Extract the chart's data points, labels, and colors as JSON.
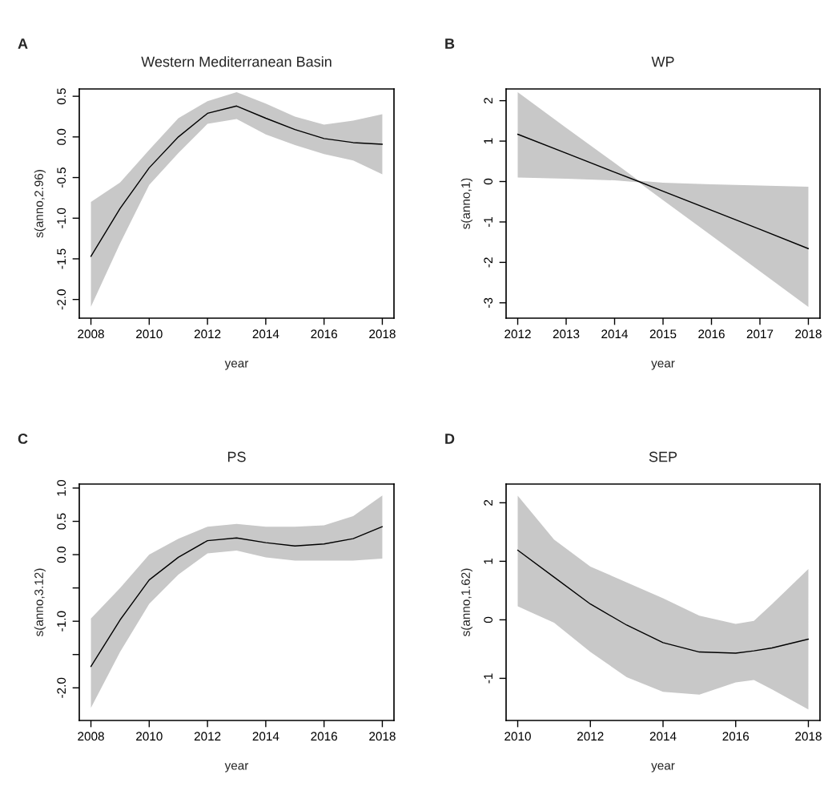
{
  "chart_data": [
    {
      "type": "line",
      "title": "Western Mediterranean Basin",
      "xlabel": "year",
      "ylabel": "s(anno,2.96)",
      "annotations": [
        "A"
      ],
      "x": [
        2008,
        2009,
        2010,
        2011,
        2012,
        2013,
        2014,
        2015,
        2016,
        2017,
        2018
      ],
      "series": [
        {
          "color": "#000000",
          "values": [
            -1.47,
            -0.88,
            -0.38,
            0.0,
            0.29,
            0.38,
            0.23,
            0.09,
            -0.02,
            -0.07,
            -0.09
          ],
          "upper": [
            -0.8,
            -0.56,
            -0.16,
            0.23,
            0.44,
            0.55,
            0.41,
            0.25,
            0.15,
            0.2,
            0.28
          ],
          "lower": [
            -2.09,
            -1.31,
            -0.59,
            -0.2,
            0.16,
            0.22,
            0.03,
            -0.1,
            -0.21,
            -0.29,
            -0.46
          ]
        }
      ],
      "xlim": [
        2007.6,
        2018.4
      ],
      "xticks": [
        2008,
        2010,
        2012,
        2014,
        2016,
        2018
      ],
      "ylim": [
        -2.23,
        0.59
      ],
      "yticks": [
        {
          "value": -2.0,
          "label": "-2.0"
        },
        {
          "value": -1.5,
          "label": "-1.5"
        },
        {
          "value": -1.0,
          "label": "-1.0"
        },
        {
          "value": -0.5,
          "label": "-0.5"
        },
        {
          "value": 0.0,
          "label": "0.0"
        },
        {
          "value": 0.5,
          "label": "0.5"
        }
      ],
      "grid": false
    },
    {
      "type": "line",
      "title": "WP",
      "xlabel": "year",
      "ylabel": "s(anno,1)",
      "annotations": [
        "B"
      ],
      "x": [
        2012,
        2013,
        2014,
        2014.5,
        2015,
        2016,
        2017,
        2018
      ],
      "series": [
        {
          "color": "#000000",
          "values": [
            1.17,
            0.7,
            0.23,
            0.0,
            -0.24,
            -0.71,
            -1.18,
            -1.66
          ],
          "upper": [
            2.21,
            1.33,
            0.46,
            0.02,
            -0.03,
            -0.07,
            -0.1,
            -0.13
          ],
          "lower": [
            0.1,
            0.07,
            0.03,
            -0.02,
            -0.46,
            -1.34,
            -2.22,
            -3.1
          ]
        }
      ],
      "xlim": [
        2011.76,
        2018.24
      ],
      "xticks": [
        2012,
        2013,
        2014,
        2015,
        2016,
        2017,
        2018
      ],
      "ylim": [
        -3.38,
        2.29
      ],
      "yticks": [
        -3,
        -2,
        -1,
        0,
        1,
        2
      ],
      "grid": false
    },
    {
      "type": "line",
      "title": "PS",
      "xlabel": "year",
      "ylabel": "s(anno,3.12)",
      "annotations": [
        "C"
      ],
      "x": [
        2008,
        2009,
        2010,
        2011,
        2012,
        2013,
        2014,
        2015,
        2016,
        2017,
        2018
      ],
      "series": [
        {
          "color": "#000000",
          "values": [
            -1.68,
            -0.98,
            -0.38,
            -0.04,
            0.21,
            0.25,
            0.18,
            0.13,
            0.16,
            0.24,
            0.42
          ],
          "upper": [
            -0.96,
            -0.5,
            0.0,
            0.24,
            0.42,
            0.46,
            0.42,
            0.42,
            0.44,
            0.58,
            0.89
          ],
          "lower": [
            -2.3,
            -1.46,
            -0.74,
            -0.3,
            0.02,
            0.06,
            -0.04,
            -0.09,
            -0.09,
            -0.09,
            -0.06
          ]
        }
      ],
      "xlim": [
        2007.6,
        2018.4
      ],
      "xticks": [
        2008,
        2010,
        2012,
        2014,
        2016,
        2018
      ],
      "ylim": [
        -2.49,
        1.06
      ],
      "yticks": [
        {
          "value": -2.0,
          "label": "-2.0"
        },
        {
          "value": -1.5,
          "label": null
        },
        {
          "value": -1.0,
          "label": "-1.0"
        },
        {
          "value": -0.5,
          "label": null
        },
        {
          "value": 0.0,
          "label": "0.0"
        },
        {
          "value": 0.5,
          "label": "0.5"
        },
        {
          "value": 1.0,
          "label": "1.0"
        }
      ],
      "grid": false
    },
    {
      "type": "line",
      "title": "SEP",
      "xlabel": "year",
      "ylabel": "s(anno,1.62)",
      "annotations": [
        "D"
      ],
      "x": [
        2010,
        2011,
        2012,
        2013,
        2014,
        2015,
        2016,
        2016.5,
        2017,
        2018
      ],
      "series": [
        {
          "color": "#000000",
          "values": [
            1.19,
            0.73,
            0.27,
            -0.09,
            -0.39,
            -0.55,
            -0.57,
            -0.53,
            -0.48,
            -0.33
          ],
          "upper": [
            2.12,
            1.37,
            0.91,
            0.64,
            0.37,
            0.07,
            -0.07,
            -0.02,
            0.27,
            0.87
          ],
          "lower": [
            0.23,
            -0.05,
            -0.55,
            -0.98,
            -1.23,
            -1.28,
            -1.07,
            -1.03,
            -1.19,
            -1.53
          ]
        }
      ],
      "xlim": [
        2009.68,
        2018.32
      ],
      "xticks": [
        2010,
        2012,
        2014,
        2016,
        2018
      ],
      "ylim": [
        -1.72,
        2.32
      ],
      "yticks": [
        -1,
        0,
        1,
        2
      ],
      "grid": false
    }
  ]
}
